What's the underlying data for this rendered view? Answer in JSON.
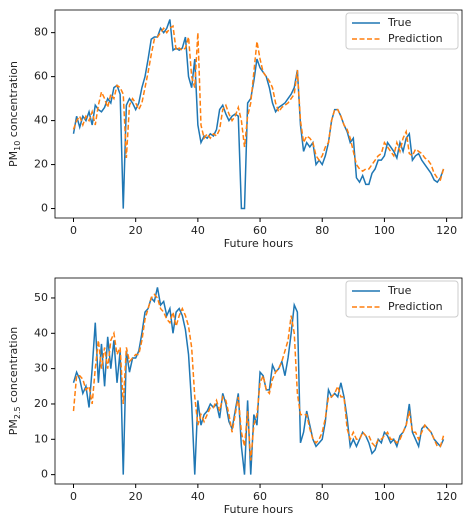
{
  "chart_data": [
    {
      "type": "line",
      "ylabel": {
        "main": "PM",
        "sub": "10",
        "rest": " concentration"
      },
      "xlabel": "Future hours",
      "x": [
        0,
        1,
        2,
        3,
        4,
        5,
        6,
        7,
        8,
        9,
        10,
        11,
        12,
        13,
        14,
        15,
        16,
        17,
        18,
        19,
        20,
        21,
        22,
        23,
        24,
        25,
        26,
        27,
        28,
        29,
        30,
        31,
        32,
        33,
        34,
        35,
        36,
        37,
        38,
        39,
        40,
        41,
        42,
        43,
        44,
        45,
        46,
        47,
        48,
        49,
        50,
        51,
        52,
        53,
        54,
        55,
        56,
        57,
        58,
        59,
        60,
        61,
        62,
        63,
        64,
        65,
        66,
        67,
        68,
        69,
        70,
        71,
        72,
        73,
        74,
        75,
        76,
        77,
        78,
        79,
        80,
        81,
        82,
        83,
        84,
        85,
        86,
        87,
        88,
        89,
        90,
        91,
        92,
        93,
        94,
        95,
        96,
        97,
        98,
        99,
        100,
        101,
        102,
        103,
        104,
        105,
        106,
        107,
        108,
        109,
        110,
        111,
        112,
        113,
        114,
        115,
        116,
        117,
        118,
        119
      ],
      "series": [
        {
          "name": "True",
          "color": "#1f77b4",
          "dash": false,
          "values": [
            34,
            42,
            37,
            42,
            40,
            44,
            38,
            47,
            45,
            44,
            46,
            50,
            48,
            55,
            56,
            52,
            0,
            47,
            50,
            48,
            45,
            48,
            55,
            60,
            68,
            77,
            78,
            78,
            82,
            80,
            82,
            86,
            72,
            73,
            72,
            73,
            78,
            60,
            55,
            68,
            38,
            30,
            33,
            32,
            34,
            33,
            36,
            45,
            47,
            43,
            40,
            42,
            43,
            42,
            0,
            0,
            48,
            50,
            58,
            68,
            64,
            62,
            60,
            55,
            48,
            44,
            46,
            47,
            48,
            50,
            52,
            55,
            63,
            38,
            26,
            30,
            28,
            30,
            20,
            22,
            20,
            24,
            30,
            40,
            45,
            45,
            42,
            38,
            35,
            30,
            32,
            14,
            12,
            15,
            11,
            11,
            16,
            18,
            22,
            22,
            24,
            30,
            28,
            26,
            23,
            30,
            26,
            32,
            34,
            22,
            24,
            25,
            22,
            20,
            18,
            16,
            13,
            12,
            14,
            18
          ]
        },
        {
          "name": "Prediction",
          "color": "#ff7f0e",
          "dash": true,
          "values": [
            36,
            40,
            42,
            38,
            42,
            40,
            44,
            38,
            47,
            53,
            50,
            46,
            52,
            50,
            56,
            55,
            52,
            23,
            47,
            50,
            48,
            45,
            48,
            55,
            62,
            70,
            77,
            78,
            80,
            82,
            80,
            82,
            83,
            72,
            73,
            72,
            73,
            78,
            60,
            55,
            80,
            38,
            32,
            34,
            32,
            34,
            33,
            36,
            45,
            47,
            43,
            40,
            42,
            46,
            40,
            28,
            42,
            48,
            62,
            76,
            68,
            62,
            60,
            58,
            55,
            48,
            44,
            46,
            47,
            48,
            50,
            52,
            63,
            40,
            30,
            33,
            32,
            30,
            24,
            22,
            24,
            28,
            30,
            40,
            45,
            45,
            42,
            38,
            36,
            32,
            26,
            20,
            18,
            17,
            18,
            18,
            20,
            22,
            24,
            25,
            30,
            28,
            26,
            24,
            30,
            26,
            32,
            35,
            25,
            24,
            27,
            26,
            25,
            23,
            22,
            20,
            16,
            14,
            13,
            18
          ]
        }
      ],
      "xlim": [
        -5.95,
        124.95
      ],
      "xticks": [
        0,
        20,
        40,
        60,
        80,
        100,
        120
      ],
      "ylim": [
        -4.3,
        90.3
      ],
      "yticks": [
        0,
        20,
        40,
        60,
        80
      ],
      "grid": false,
      "legend": "upper right"
    },
    {
      "type": "line",
      "ylabel": {
        "main": "PM",
        "sub": "2.5",
        "rest": " concentration"
      },
      "xlabel": "Future hours",
      "x": [
        0,
        1,
        2,
        3,
        4,
        5,
        6,
        7,
        8,
        9,
        10,
        11,
        12,
        13,
        14,
        15,
        16,
        17,
        18,
        19,
        20,
        21,
        22,
        23,
        24,
        25,
        26,
        27,
        28,
        29,
        30,
        31,
        32,
        33,
        34,
        35,
        36,
        37,
        38,
        39,
        40,
        41,
        42,
        43,
        44,
        45,
        46,
        47,
        48,
        49,
        50,
        51,
        52,
        53,
        54,
        55,
        56,
        57,
        58,
        59,
        60,
        61,
        62,
        63,
        64,
        65,
        66,
        67,
        68,
        69,
        70,
        71,
        72,
        73,
        74,
        75,
        76,
        77,
        78,
        79,
        80,
        81,
        82,
        83,
        84,
        85,
        86,
        87,
        88,
        89,
        90,
        91,
        92,
        93,
        94,
        95,
        96,
        97,
        98,
        99,
        100,
        101,
        102,
        103,
        104,
        105,
        106,
        107,
        108,
        109,
        110,
        111,
        112,
        113,
        114,
        115,
        116,
        117,
        118,
        119
      ],
      "series": [
        {
          "name": "True",
          "color": "#1f77b4",
          "dash": false,
          "values": [
            26,
            29,
            27,
            23,
            25,
            19,
            30,
            43,
            26,
            37,
            25,
            39,
            30,
            38,
            26,
            35,
            0,
            35,
            29,
            33,
            33,
            35,
            40,
            46,
            47,
            50,
            49,
            53,
            48,
            49,
            45,
            47,
            40,
            46,
            47,
            45,
            41,
            34,
            20,
            0,
            21,
            14,
            17,
            18,
            20,
            19,
            20,
            16,
            23,
            20,
            15,
            13,
            18,
            23,
            8,
            0,
            21,
            0,
            17,
            14,
            29,
            28,
            24,
            24,
            31,
            29,
            30,
            32,
            28,
            33,
            40,
            48,
            46,
            9,
            12,
            18,
            14,
            10,
            8,
            9,
            10,
            15,
            24,
            22,
            23,
            22,
            26,
            22,
            16,
            8,
            10,
            8,
            10,
            12,
            11,
            9,
            6,
            7,
            10,
            9,
            12,
            11,
            9,
            10,
            8,
            11,
            12,
            14,
            20,
            12,
            10,
            8,
            13,
            14,
            13,
            12,
            10,
            9,
            8,
            10
          ]
        },
        {
          "name": "Prediction",
          "color": "#ff7f0e",
          "dash": true,
          "values": [
            18,
            28,
            28,
            27,
            24,
            25,
            20,
            30,
            38,
            30,
            36,
            30,
            38,
            40,
            34,
            36,
            20,
            36,
            32,
            33,
            34,
            34,
            38,
            44,
            47,
            50,
            51,
            50,
            47,
            46,
            44,
            43,
            46,
            42,
            45,
            47,
            45,
            42,
            36,
            22,
            14,
            17,
            15,
            17,
            19,
            19,
            21,
            18,
            22,
            21,
            17,
            12,
            17,
            22,
            12,
            8,
            18,
            4,
            14,
            17,
            26,
            28,
            24,
            23,
            27,
            29,
            30,
            32,
            35,
            38,
            45,
            40,
            23,
            17,
            17,
            17,
            13,
            10,
            9,
            10,
            12,
            16,
            22,
            22,
            23,
            25,
            22,
            22,
            13,
            10,
            12,
            10,
            10,
            12,
            11,
            11,
            9,
            8,
            10,
            10,
            11,
            12,
            10,
            10,
            9,
            10,
            12,
            14,
            18,
            12,
            12,
            10,
            12,
            14,
            13,
            12,
            10,
            8,
            8,
            11
          ]
        }
      ],
      "xlim": [
        -5.95,
        124.95
      ],
      "xticks": [
        0,
        20,
        40,
        60,
        80,
        100,
        120
      ],
      "ylim": [
        -2.65,
        55.65
      ],
      "yticks": [
        0,
        10,
        20,
        30,
        40,
        50
      ],
      "grid": false,
      "legend": "upper right"
    }
  ]
}
